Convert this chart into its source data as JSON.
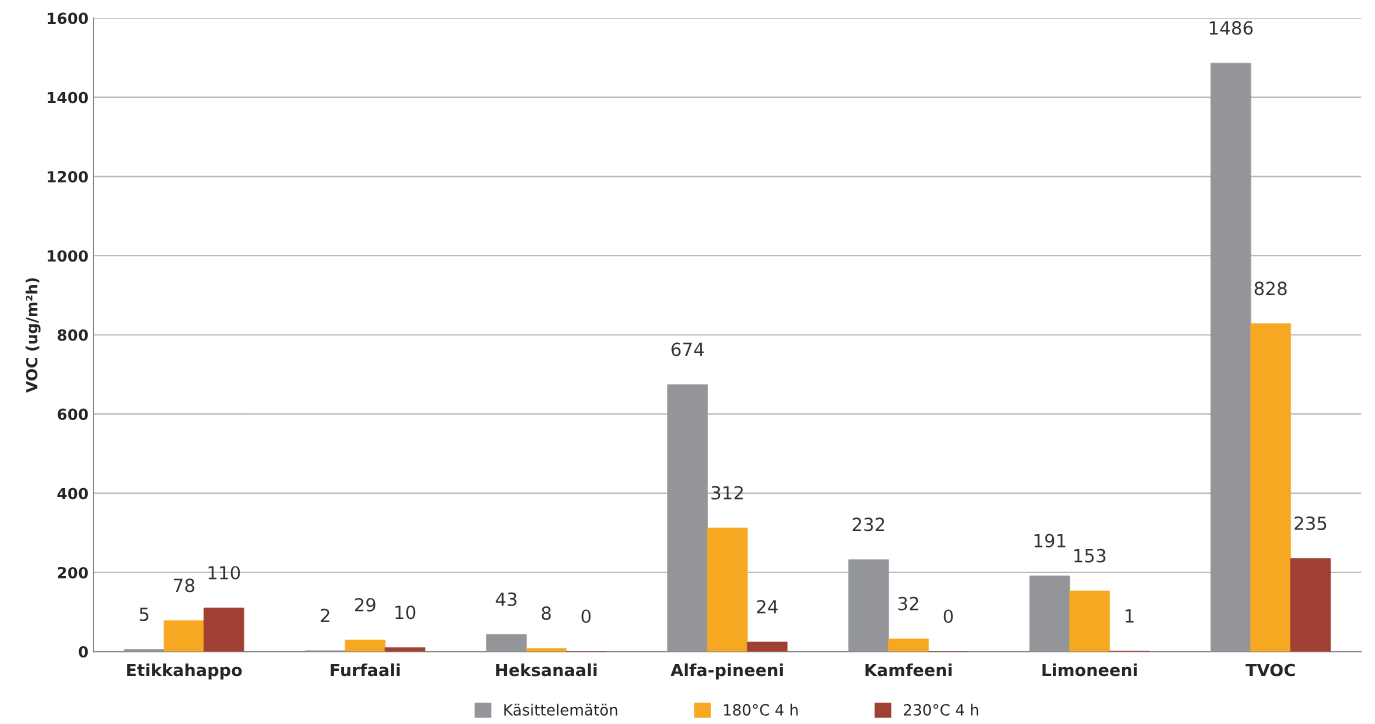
{
  "chart_data": {
    "type": "bar",
    "ylabel": "VOC (ug/m²h)",
    "categories": [
      "Etikkahappo",
      "Furfaali",
      "Heksanaali",
      "Alfa-pineeni",
      "Kamfeeni",
      "Limoneeni",
      "TVOC"
    ],
    "series": [
      {
        "name": "Käsittelemätön",
        "color": "#939598",
        "values": [
          5,
          2,
          43,
          674,
          232,
          191,
          1486
        ]
      },
      {
        "name": "180°C 4 h",
        "color": "#f7a823",
        "values": [
          78,
          29,
          8,
          312,
          32,
          153,
          828
        ]
      },
      {
        "name": "230°C 4 h",
        "color": "#a04033",
        "values": [
          110,
          10,
          0,
          24,
          0,
          1,
          235
        ]
      }
    ],
    "ylim": [
      0,
      1600
    ],
    "yticks": [
      0,
      200,
      400,
      600,
      800,
      1000,
      1200,
      1400,
      1600
    ],
    "grid": "y",
    "legend": "bottom",
    "data_labels": true
  }
}
